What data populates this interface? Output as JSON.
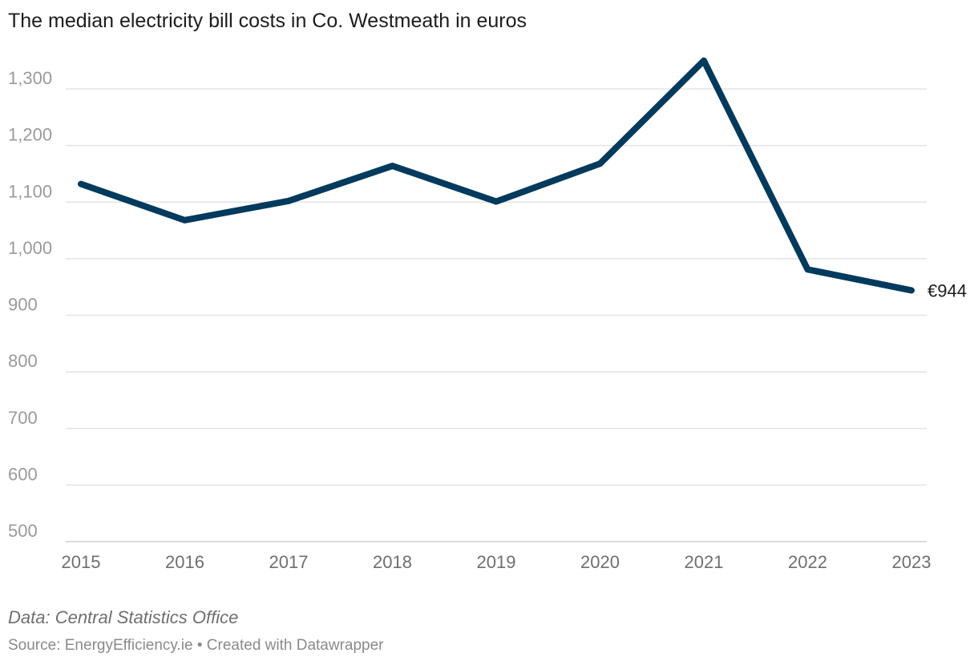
{
  "chart_data": {
    "type": "line",
    "title": "The median electricity bill costs in Co. Westmeath in euros",
    "categories": [
      "2015",
      "2016",
      "2017",
      "2018",
      "2019",
      "2020",
      "2021",
      "2022",
      "2023"
    ],
    "series": [
      {
        "name": "Median electricity bill (€)",
        "values": [
          1132,
          1068,
          1102,
          1164,
          1101,
          1168,
          1350,
          981,
          944
        ]
      }
    ],
    "yticks": [
      500,
      600,
      700,
      800,
      900,
      1000,
      1100,
      1200,
      1300
    ],
    "ytick_labels": [
      "500",
      "600",
      "700",
      "800",
      "900",
      "1,000",
      "1,100",
      "1,200",
      "1,300"
    ],
    "ylim": [
      500,
      1350
    ],
    "end_label": "€944",
    "line_color": "#003a5d",
    "xlabel": "",
    "ylabel": ""
  },
  "footer": {
    "note": "Data: Central Statistics Office",
    "source": "Source: EnergyEfficiency.ie • Created with Datawrapper"
  }
}
